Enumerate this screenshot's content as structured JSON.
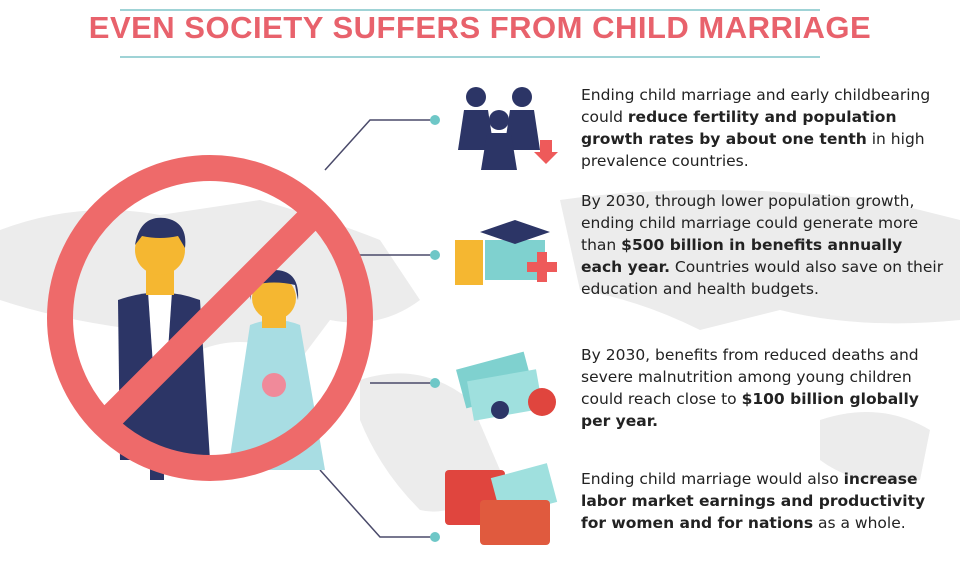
{
  "header": {
    "title": "EVEN SOCIETY SUFFERS FROM CHILD MARRIAGE"
  },
  "items": [
    {
      "segments": [
        {
          "text": "Ending child marriage and early childbearing could ",
          "bold": false
        },
        {
          "text": "reduce fertility and population growth rates by about one tenth",
          "bold": true
        },
        {
          "text": " in high prevalence countries.",
          "bold": false
        }
      ]
    },
    {
      "segments": [
        {
          "text": "By 2030, through lower population growth, ending child marriage could generate more than ",
          "bold": false
        },
        {
          "text": "$500 billion in benefits annually each year.",
          "bold": true
        },
        {
          "text": " Countries would also save on their education and health budgets.",
          "bold": false
        }
      ]
    },
    {
      "segments": [
        {
          "text": "By 2030, benefits from reduced deaths and severe malnutrition among young children could reach close to ",
          "bold": false
        },
        {
          "text": "$100 billion globally per year.",
          "bold": true
        }
      ]
    },
    {
      "segments": [
        {
          "text": "Ending child marriage would also ",
          "bold": false
        },
        {
          "text": "increase labor market earnings and productivity for women and for nations",
          "bold": true
        },
        {
          "text": " as a whole.",
          "bold": false
        }
      ]
    }
  ]
}
